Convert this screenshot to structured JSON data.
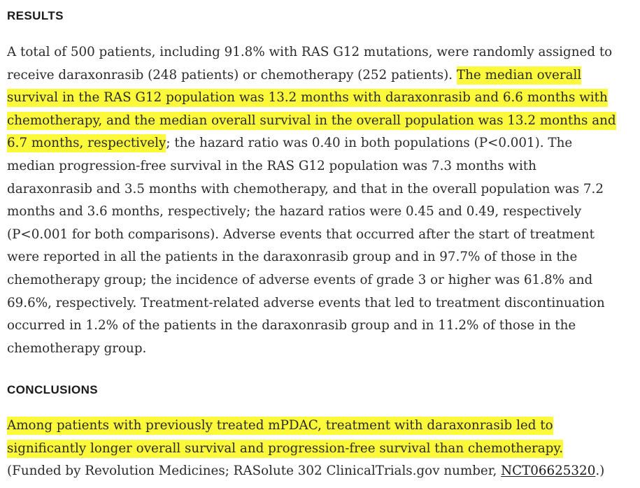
{
  "results": {
    "heading": "RESULTS",
    "lines": [
      "A total of 500 patients, including 91.8% with RAS G12 mutations, were randomly assigned to",
      [
        "receive daraxonrasib (248 patients) or chemotherapy (252 patients). ",
        "The median overall"
      ],
      "survival in the RAS G12 population was 13.2 months with daraxonrasib and 6.6 months with",
      "chemotherapy, and the median overall survival in the overall population was 13.2 months and",
      [
        "6.7 months, respectively",
        "; the hazard ratio was 0.40 in both populations (P<0.001). The"
      ],
      "median progression-free survival in the RAS G12 population was 7.3 months with",
      "daraxonrasib and 3.5 months with chemotherapy, and that in the overall population was 7.2",
      "months and 3.6 months, respectively; the hazard ratios were 0.45 and 0.49, respectively",
      "(P<0.001 for both comparisons). Adverse events that occurred after the start of treatment",
      "were reported in all the patients in the daraxonrasib group and in 97.7% of those in the",
      "chemotherapy group; the incidence of adverse events of grade 3 or higher was 61.8% and",
      "69.6%, respectively. Treatment-related adverse events that led to treatment discontinuation",
      "occurred in 1.2% of the patients in the daraxonrasib group and in 11.2% of those in the",
      "chemotherapy group."
    ]
  },
  "conclusions": {
    "heading": "CONCLUSIONS",
    "line1": "Among patients with previously treated mPDAC, treatment with daraxonrasib led to",
    "line2": "significantly longer overall survival and progression-free survival than chemotherapy.",
    "line3_prefix": "(Funded by Revolution Medicines; RASolute 302 ClinicalTrials.gov number, ",
    "trial_link": "NCT06625320",
    "line3_suffix": ".)"
  },
  "colors": {
    "highlight": "#fbf93a",
    "text": "#2b2b2b"
  }
}
